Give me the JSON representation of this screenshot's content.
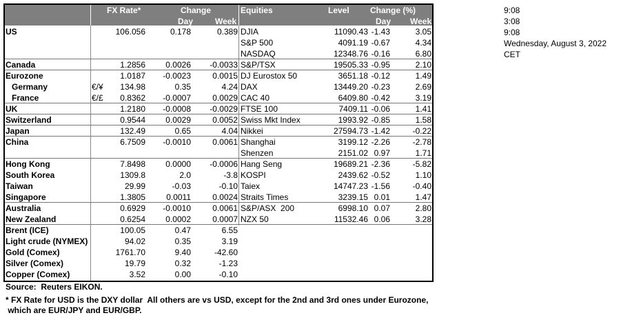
{
  "header": {
    "fx_rate": "FX Rate*",
    "change": "Change",
    "day": "Day",
    "week": "Week",
    "equities": "Equities",
    "level": "Level",
    "change_pct": "Change (%)",
    "eq_day": "Day",
    "eq_week": "Week"
  },
  "table": {
    "rows": [
      {
        "fx": {
          "name": "US",
          "rate": "106.056",
          "day": "0.178",
          "week": "0.389"
        },
        "eq": {
          "name": "DJIA",
          "level": "11090.43",
          "day": "-1.43",
          "week": "3.05"
        }
      },
      {
        "eq": {
          "name": "S&P 500",
          "level": "4091.19",
          "day": "-0.67",
          "week": "4.34"
        }
      },
      {
        "eq": {
          "name": "NASDAQ",
          "level": "12348.76",
          "day": "-0.16",
          "week": "6.80"
        }
      },
      {
        "fx": {
          "name": "Canada",
          "rate": "1.2856",
          "day": "0.0026",
          "week": "-0.0033"
        },
        "eq": {
          "name": "S&P/TSX",
          "level": "19505.33",
          "day": "-0.95",
          "week": "2.10"
        }
      },
      {
        "fx": {
          "name": "Eurozone",
          "rate": "1.0187",
          "day": "-0.0023",
          "week": "0.0015"
        },
        "eq": {
          "name": "DJ Eurostox 50",
          "level": "3651.18",
          "day": "-0.12",
          "week": "1.49"
        }
      },
      {
        "fx": {
          "name": "Germany",
          "unit": "€/¥",
          "rate": "134.98",
          "day": "0.35",
          "week": "4.24"
        },
        "eq": {
          "name": "DAX",
          "level": "13449.20",
          "day": "-0.23",
          "week": "2.69"
        }
      },
      {
        "fx": {
          "name": "France",
          "unit": "€/£",
          "rate": "0.8362",
          "day": "-0.0007",
          "week": "0.0029"
        },
        "eq": {
          "name": "CAC 40",
          "level": "6409.80",
          "day": "-0.42",
          "week": "3.19"
        }
      },
      {
        "fx": {
          "name": "UK",
          "rate": "1.2180",
          "day": "-0.0008",
          "week": "-0.0029"
        },
        "eq": {
          "name": "FTSE 100",
          "level": "7409.11",
          "day": "-0.06",
          "week": "1.41"
        }
      },
      {
        "fx": {
          "name": "Switzerland",
          "rate": "0.9544",
          "day": "0.0029",
          "week": "0.0052"
        },
        "eq": {
          "name": "Swiss Mkt Index",
          "level": "1993.92",
          "day": "-0.85",
          "week": "1.58"
        }
      },
      {
        "fx": {
          "name": "Japan",
          "rate": "132.49",
          "day": "0.65",
          "week": "4.04"
        },
        "eq": {
          "name": "Nikkei",
          "level": "27594.73",
          "day": "-1.42",
          "week": "-0.22"
        }
      },
      {
        "fx": {
          "name": "China",
          "rate": "6.7509",
          "day": "-0.0010",
          "week": "0.0061"
        },
        "eq": {
          "name": "Shanghai",
          "level": "3199.12",
          "day": "-2.26",
          "week": "-2.78"
        }
      },
      {
        "eq": {
          "name": "Shenzen",
          "level": "2151.02",
          "day": "0.97",
          "week": "1.71"
        }
      },
      {
        "fx": {
          "name": "Hong Kong",
          "rate": "7.8498",
          "day": "0.0000",
          "week": "-0.0006"
        },
        "eq": {
          "name": "Hang Seng",
          "level": "19689.21",
          "day": "-2.36",
          "week": "-5.82"
        }
      },
      {
        "fx": {
          "name": "South Korea",
          "rate": "1309.8",
          "day": "2.0",
          "week": "-3.8"
        },
        "eq": {
          "name": "KOSPI",
          "level": "2439.62",
          "day": "-0.52",
          "week": "1.10"
        }
      },
      {
        "fx": {
          "name": "Taiwan",
          "rate": "29.99",
          "day": "-0.03",
          "week": "-0.10"
        },
        "eq": {
          "name": "Taiex",
          "level": "14747.23",
          "day": "-1.56",
          "week": "-0.40"
        }
      },
      {
        "fx": {
          "name": "Singapore",
          "rate": "1.3805",
          "day": "0.0011",
          "week": "0.0024"
        },
        "eq": {
          "name": "Straits Times",
          "level": "3239.15",
          "day": "0.01",
          "week": "1.47"
        }
      },
      {
        "fx": {
          "name": "Australia",
          "rate": "0.6929",
          "day": "-0.0010",
          "week": "0.0061"
        },
        "eq": {
          "name": "S&P/ASX  200",
          "level": "6998.10",
          "day": "0.07",
          "week": "2.80"
        }
      },
      {
        "fx": {
          "name": "New Zealand",
          "rate": "0.6254",
          "day": "0.0002",
          "week": "0.0007"
        },
        "eq": {
          "name": "NZX 50",
          "level": "11532.46",
          "day": "0.06",
          "week": "3.28"
        }
      },
      {
        "fx": {
          "name": "Brent (ICE)",
          "rate": "100.05",
          "day": "0.47",
          "week": "6.55"
        }
      },
      {
        "fx": {
          "name": "Light crude (NYMEX)",
          "rate": "94.02",
          "day": "0.35",
          "week": "3.19"
        }
      },
      {
        "fx": {
          "name": "Gold (Comex)",
          "rate": "1761.70",
          "day": "9.40",
          "week": "-42.60"
        }
      },
      {
        "fx": {
          "name": "Silver (Comex)",
          "rate": "19.79",
          "day": "0.32",
          "week": "-1.23"
        }
      },
      {
        "fx": {
          "name": "Copper (Comex)",
          "rate": "3.52",
          "day": "0.00",
          "week": "-0.10"
        }
      }
    ]
  },
  "side": {
    "time1": "9:08",
    "time2": "3:08",
    "time3": "9:08",
    "date": "Wednesday, August 3, 2022",
    "zone": "CET"
  },
  "footer": {
    "source": "Source:  Reuters EIKON.",
    "note1": "* FX Rate for USD is the DXY dollar  All others are vs USD, except for the 2nd and 3rd ones under Eurozone,",
    "note2": " which are EUR/JPY and EUR/GBP."
  }
}
